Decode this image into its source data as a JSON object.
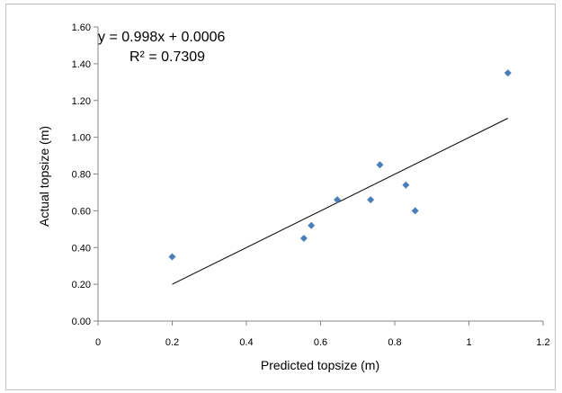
{
  "chart_data": {
    "type": "scatter",
    "xlabel": "Predicted topsize (m)",
    "ylabel": "Actual topsize (m)",
    "xlim": [
      0,
      1.2
    ],
    "ylim": [
      0,
      1.6
    ],
    "x_ticks": [
      "0",
      "0.2",
      "0.4",
      "0.6",
      "0.8",
      "1",
      "1.2"
    ],
    "y_ticks": [
      "0.00",
      "0.20",
      "0.40",
      "0.60",
      "0.80",
      "1.00",
      "1.20",
      "1.40",
      "1.60"
    ],
    "grid": false,
    "legend": "none",
    "marker_color": "#4a7ebb",
    "trendline_color": "#000000",
    "points": [
      {
        "x": 0.2,
        "y": 0.35
      },
      {
        "x": 0.555,
        "y": 0.45
      },
      {
        "x": 0.575,
        "y": 0.52
      },
      {
        "x": 0.645,
        "y": 0.66
      },
      {
        "x": 0.735,
        "y": 0.66
      },
      {
        "x": 0.76,
        "y": 0.85
      },
      {
        "x": 0.83,
        "y": 0.74
      },
      {
        "x": 0.855,
        "y": 0.6
      },
      {
        "x": 1.105,
        "y": 1.35
      }
    ],
    "trendline": {
      "x": [
        0.2,
        1.105
      ],
      "equation": "y = 0.998x + 0.0006",
      "r_squared": "R² = 0.7309"
    }
  }
}
